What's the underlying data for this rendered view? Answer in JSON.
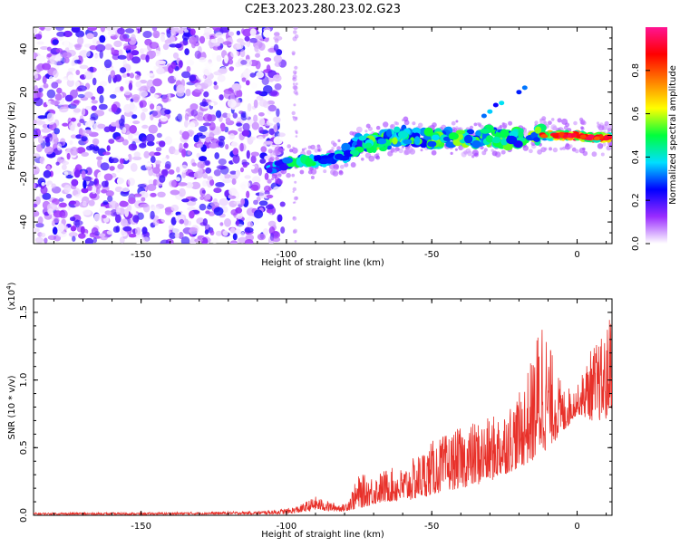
{
  "title": "C2E3.2023.280.23.02.G23",
  "chart_data": [
    {
      "type": "heatmap",
      "xlabel": "Height of straight line (km)",
      "ylabel": "Frequency (Hz)",
      "xlim": [
        -187,
        12
      ],
      "ylim": [
        -50,
        50
      ],
      "xticks": [
        -150,
        -100,
        -50,
        0
      ],
      "yticks": [
        -40,
        -20,
        0,
        20,
        40
      ],
      "colorbar": {
        "label": "Normalized spectral amplitude",
        "ticks": [
          0.0,
          0.2,
          0.4,
          0.6,
          0.8
        ],
        "tick_labels": [
          "0.0",
          "0.2",
          "0.4",
          "0.6",
          "0.8"
        ],
        "range": [
          0,
          1
        ],
        "colors": [
          "#ffffff",
          "#9a2cff",
          "#0000ff",
          "#00dfff",
          "#00ff3c",
          "#ffff00",
          "#ff7f00",
          "#ff0000",
          "#ff1493"
        ]
      },
      "noise_region_x": [
        -187,
        -100
      ],
      "signal_track": [
        {
          "x": -105,
          "freq": -15,
          "amp": 0.35
        },
        {
          "x": -100,
          "freq": -13,
          "amp": 0.45
        },
        {
          "x": -95,
          "freq": -12,
          "amp": 0.5
        },
        {
          "x": -90,
          "freq": -12,
          "amp": 0.45
        },
        {
          "x": -85,
          "freq": -11,
          "amp": 0.4
        },
        {
          "x": -80,
          "freq": -9,
          "amp": 0.4
        },
        {
          "x": -75,
          "freq": -4,
          "amp": 0.45
        },
        {
          "x": -70,
          "freq": -3,
          "amp": 0.55
        },
        {
          "x": -65,
          "freq": -2,
          "amp": 0.5
        },
        {
          "x": -60,
          "freq": 0,
          "amp": 0.6
        },
        {
          "x": -55,
          "freq": -1,
          "amp": 0.5
        },
        {
          "x": -50,
          "freq": -2,
          "amp": 0.55
        },
        {
          "x": -45,
          "freq": -1,
          "amp": 0.5
        },
        {
          "x": -40,
          "freq": -1,
          "amp": 0.55
        },
        {
          "x": -35,
          "freq": -2,
          "amp": 0.5
        },
        {
          "x": -30,
          "freq": 0,
          "amp": 0.5
        },
        {
          "x": -25,
          "freq": -2,
          "amp": 0.55
        },
        {
          "x": -20,
          "freq": -1,
          "amp": 0.5
        },
        {
          "x": -15,
          "freq": 0,
          "amp": 0.55
        },
        {
          "x": -10,
          "freq": 0,
          "amp": 0.7
        },
        {
          "x": -5,
          "freq": 0,
          "amp": 0.85
        },
        {
          "x": 0,
          "freq": 0,
          "amp": 0.9
        },
        {
          "x": 5,
          "freq": -1,
          "amp": 0.85
        },
        {
          "x": 10,
          "freq": -1,
          "amp": 0.8
        }
      ]
    },
    {
      "type": "line",
      "xlabel": "Height of straight line (km)",
      "ylabel": "SNR (10 * v/v)",
      "y_multiplier": "(x10",
      "y_multiplier_exp": "4",
      "y_multiplier_close": ")",
      "xlim": [
        -187,
        12
      ],
      "ylim": [
        0,
        1.6
      ],
      "xticks": [
        -150,
        -100,
        -50,
        0
      ],
      "yticks": [
        0.0,
        0.5,
        1.0,
        1.5
      ],
      "ytick_labels": [
        "0.0",
        "0.5",
        "1.0",
        "1.5"
      ],
      "color": "#e8312a",
      "series": [
        {
          "envelope_x": [
            -187,
            -150,
            -110,
            -100,
            -95,
            -90,
            -85,
            -80,
            -75,
            -70,
            -65,
            -60,
            -55,
            -50,
            -45,
            -40,
            -35,
            -30,
            -25,
            -20,
            -15,
            -12,
            -10,
            -5,
            0,
            5,
            10,
            12
          ],
          "envelope_y": [
            0.02,
            0.02,
            0.03,
            0.05,
            0.08,
            0.14,
            0.1,
            0.08,
            0.3,
            0.3,
            0.35,
            0.35,
            0.45,
            0.55,
            0.6,
            0.65,
            0.7,
            0.72,
            0.8,
            0.9,
            1.2,
            1.6,
            1.3,
            0.95,
            0.95,
            1.25,
            1.35,
            1.6
          ],
          "baseline_y": [
            0.005,
            0.005,
            0.008,
            0.01,
            0.02,
            0.04,
            0.03,
            0.03,
            0.05,
            0.08,
            0.1,
            0.1,
            0.12,
            0.15,
            0.18,
            0.2,
            0.22,
            0.25,
            0.3,
            0.35,
            0.4,
            0.45,
            0.5,
            0.6,
            0.75,
            0.7,
            0.7,
            0.8
          ]
        }
      ]
    }
  ]
}
